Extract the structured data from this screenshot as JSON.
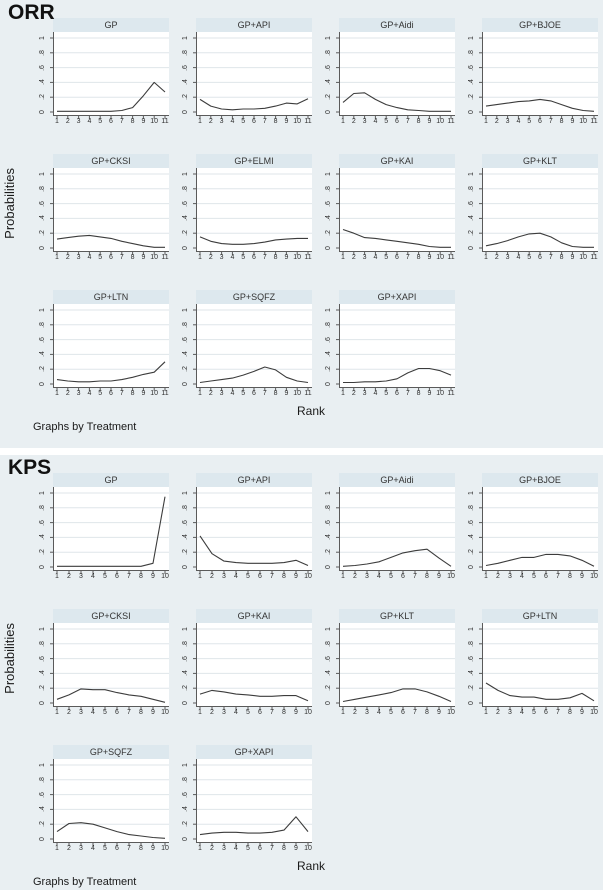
{
  "colors": {
    "figure_background": "#e9eff2",
    "title_band": "#dde8ee",
    "plot_background": "#ffffff",
    "gridline": "#dfe6ea",
    "axis": "#5a5a5a",
    "series_line": "#3c3c3c",
    "text": "#1a1a1a"
  },
  "chart_data": [
    {
      "type": "line",
      "panel_label": "ORR",
      "ylabel": "Probabilities",
      "xlabel": "Rank",
      "note": "Graphs by Treatment",
      "ylim": [
        0,
        1
      ],
      "grid": true,
      "legend_position": "none",
      "y_ticks": [
        "0",
        ".2",
        ".4",
        ".6",
        ".8",
        "1"
      ],
      "x_ticks": [
        "1",
        "2",
        "3",
        "4",
        "5",
        "6",
        "7",
        "8",
        "9",
        "10",
        "11"
      ],
      "series": [
        {
          "name": "GP",
          "values": [
            0.01,
            0.01,
            0.01,
            0.01,
            0.01,
            0.01,
            0.02,
            0.06,
            0.22,
            0.4,
            0.27
          ]
        },
        {
          "name": "GP+API",
          "values": [
            0.17,
            0.08,
            0.04,
            0.03,
            0.04,
            0.04,
            0.05,
            0.08,
            0.12,
            0.11,
            0.18
          ]
        },
        {
          "name": "GP+Aidi",
          "values": [
            0.13,
            0.25,
            0.26,
            0.17,
            0.1,
            0.06,
            0.03,
            0.02,
            0.01,
            0.01,
            0.01
          ]
        },
        {
          "name": "GP+BJOE",
          "values": [
            0.08,
            0.1,
            0.12,
            0.14,
            0.15,
            0.17,
            0.15,
            0.1,
            0.05,
            0.02,
            0.01
          ]
        },
        {
          "name": "GP+CKSI",
          "values": [
            0.12,
            0.14,
            0.16,
            0.17,
            0.15,
            0.13,
            0.09,
            0.06,
            0.03,
            0.01,
            0.01
          ]
        },
        {
          "name": "GP+ELMI",
          "values": [
            0.15,
            0.09,
            0.06,
            0.05,
            0.05,
            0.06,
            0.08,
            0.11,
            0.12,
            0.13,
            0.13
          ]
        },
        {
          "name": "GP+KAI",
          "values": [
            0.25,
            0.2,
            0.14,
            0.13,
            0.11,
            0.09,
            0.07,
            0.05,
            0.02,
            0.01,
            0.01
          ]
        },
        {
          "name": "GP+KLT",
          "values": [
            0.03,
            0.06,
            0.1,
            0.15,
            0.19,
            0.2,
            0.15,
            0.07,
            0.02,
            0.01,
            0.01
          ]
        },
        {
          "name": "GP+LTN",
          "values": [
            0.06,
            0.04,
            0.03,
            0.03,
            0.04,
            0.04,
            0.06,
            0.09,
            0.13,
            0.16,
            0.3
          ]
        },
        {
          "name": "GP+SQFZ",
          "values": [
            0.02,
            0.04,
            0.06,
            0.08,
            0.12,
            0.17,
            0.23,
            0.19,
            0.09,
            0.04,
            0.02
          ]
        },
        {
          "name": "GP+XAPI",
          "values": [
            0.02,
            0.02,
            0.03,
            0.03,
            0.04,
            0.07,
            0.15,
            0.21,
            0.21,
            0.18,
            0.12
          ]
        }
      ]
    },
    {
      "type": "line",
      "panel_label": "KPS",
      "ylabel": "Probabilities",
      "xlabel": "Rank",
      "note": "Graphs by Treatment",
      "ylim": [
        0,
        1
      ],
      "grid": true,
      "legend_position": "none",
      "y_ticks": [
        "0",
        ".2",
        ".4",
        ".6",
        ".8",
        "1"
      ],
      "x_ticks": [
        "1",
        "2",
        "3",
        "4",
        "5",
        "6",
        "7",
        "8",
        "9",
        "10"
      ],
      "series": [
        {
          "name": "GP",
          "values": [
            0.01,
            0.01,
            0.01,
            0.01,
            0.01,
            0.01,
            0.01,
            0.01,
            0.05,
            0.95
          ]
        },
        {
          "name": "GP+API",
          "values": [
            0.42,
            0.18,
            0.08,
            0.06,
            0.05,
            0.05,
            0.05,
            0.06,
            0.09,
            0.02
          ]
        },
        {
          "name": "GP+Aidi",
          "values": [
            0.01,
            0.02,
            0.04,
            0.07,
            0.13,
            0.19,
            0.22,
            0.24,
            0.12,
            0.01
          ]
        },
        {
          "name": "GP+BJOE",
          "values": [
            0.02,
            0.05,
            0.09,
            0.13,
            0.13,
            0.17,
            0.17,
            0.15,
            0.09,
            0.01
          ]
        },
        {
          "name": "GP+CKSI",
          "values": [
            0.05,
            0.11,
            0.19,
            0.18,
            0.18,
            0.14,
            0.11,
            0.09,
            0.05,
            0.01
          ]
        },
        {
          "name": "GP+KAI",
          "values": [
            0.12,
            0.17,
            0.15,
            0.12,
            0.11,
            0.09,
            0.09,
            0.1,
            0.1,
            0.03
          ]
        },
        {
          "name": "GP+KLT",
          "values": [
            0.02,
            0.05,
            0.08,
            0.11,
            0.14,
            0.19,
            0.19,
            0.15,
            0.09,
            0.02
          ]
        },
        {
          "name": "GP+LTN",
          "values": [
            0.27,
            0.17,
            0.1,
            0.08,
            0.08,
            0.05,
            0.05,
            0.07,
            0.13,
            0.03
          ]
        },
        {
          "name": "GP+SQFZ",
          "values": [
            0.1,
            0.21,
            0.22,
            0.2,
            0.15,
            0.1,
            0.06,
            0.04,
            0.02,
            0.01
          ]
        },
        {
          "name": "GP+XAPI",
          "values": [
            0.06,
            0.08,
            0.09,
            0.09,
            0.08,
            0.08,
            0.09,
            0.12,
            0.3,
            0.1
          ]
        }
      ]
    }
  ]
}
